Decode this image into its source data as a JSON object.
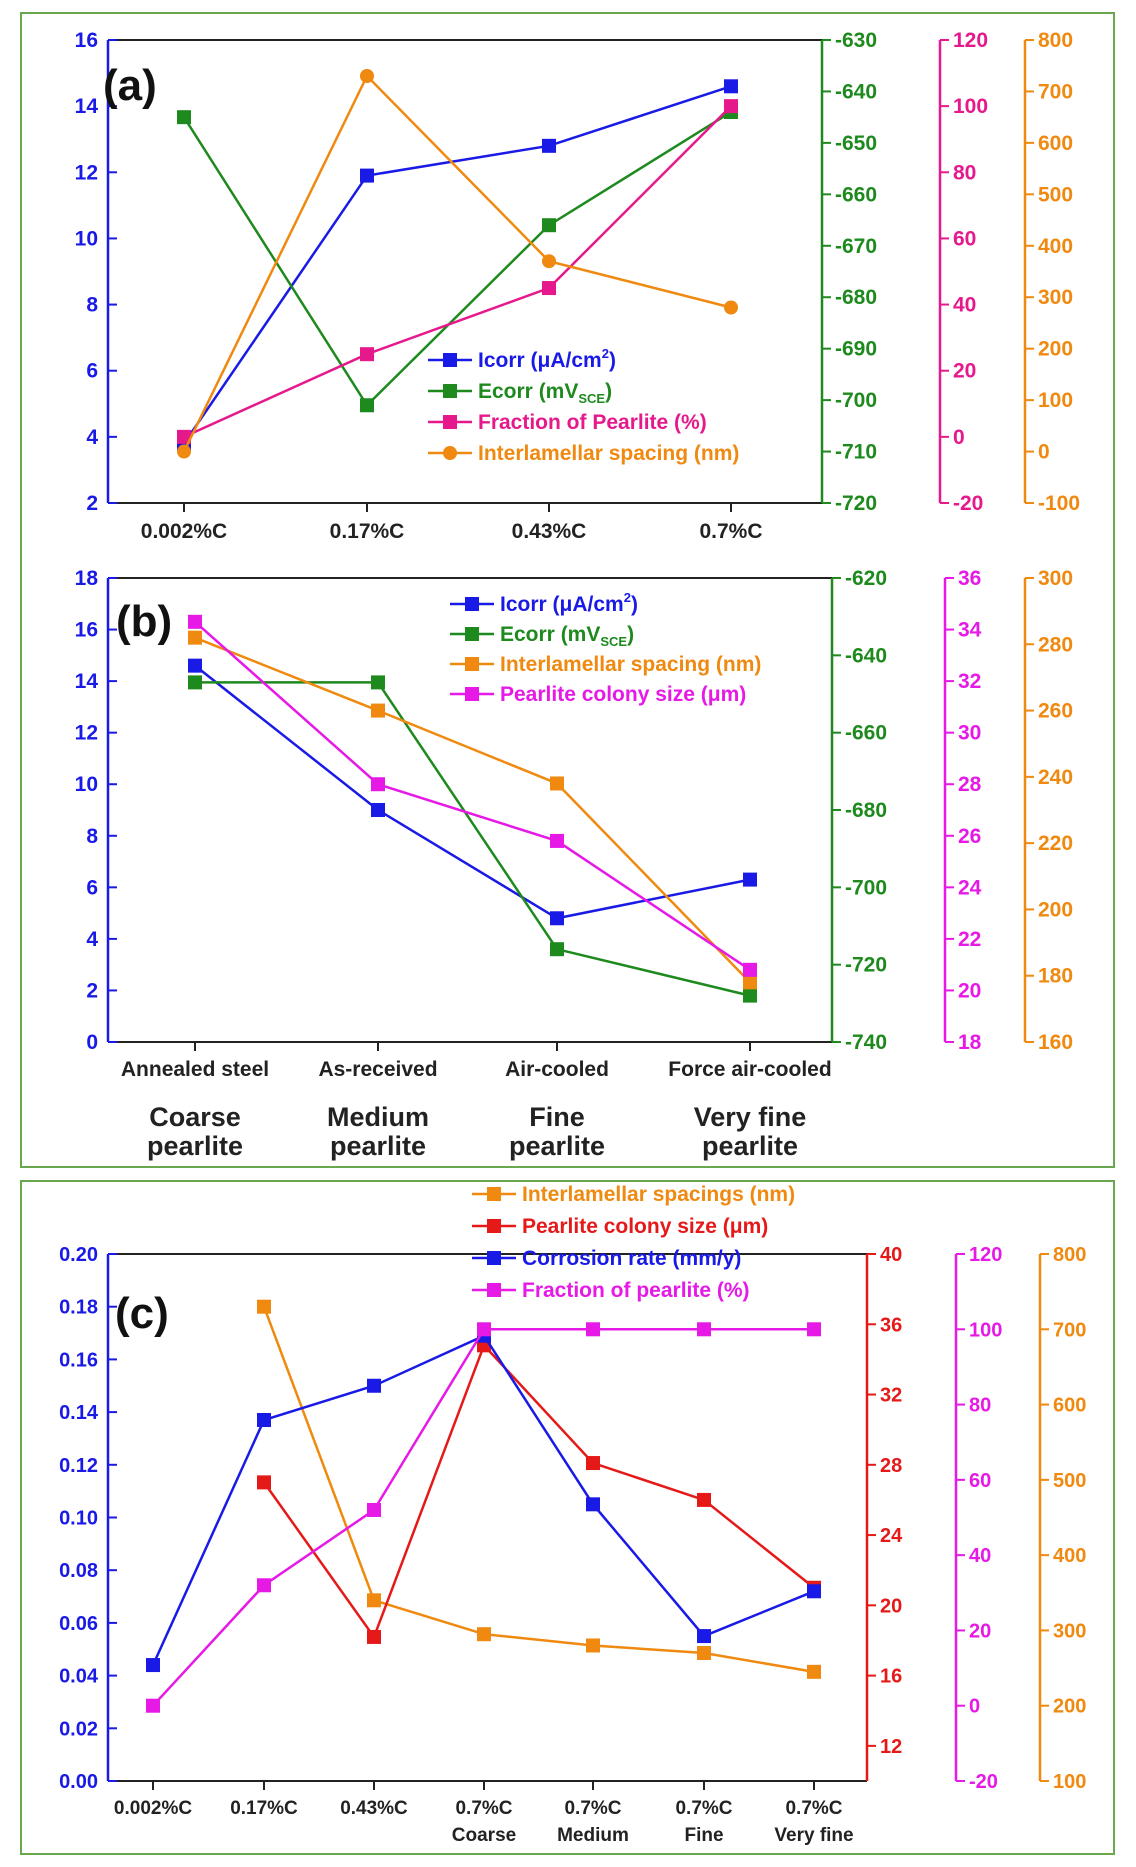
{
  "chart_data": [
    {
      "id": "a",
      "type": "line",
      "panel_label": "(a)",
      "categories": [
        "0.002%C",
        "0.17%C",
        "0.43%C",
        "0.7%C"
      ],
      "axes": [
        {
          "id": "y1",
          "side": "left",
          "color": "#1a1ae6",
          "ylim": [
            2,
            16
          ],
          "ticks": [
            2,
            4,
            6,
            8,
            10,
            12,
            14,
            16
          ]
        },
        {
          "id": "y2",
          "side": "right",
          "color": "#1e8a1e",
          "ylim": [
            -720,
            -630
          ],
          "ticks": [
            -720,
            -710,
            -700,
            -690,
            -680,
            -670,
            -660,
            -650,
            -640,
            -630
          ]
        },
        {
          "id": "y3",
          "side": "right",
          "color": "#e6198c",
          "ylim": [
            -20,
            120
          ],
          "ticks": [
            -20,
            0,
            20,
            40,
            60,
            80,
            100,
            120
          ]
        },
        {
          "id": "y4",
          "side": "right",
          "color": "#f0890f",
          "ylim": [
            -100,
            800
          ],
          "ticks": [
            -100,
            0,
            100,
            200,
            300,
            400,
            500,
            600,
            700,
            800
          ]
        }
      ],
      "series": [
        {
          "name": "Icorr (μA/cm²)",
          "legend": [
            "Icorr (μA/cm",
            "2",
            ")"
          ],
          "axis": "y1",
          "color": "#1a1ae6",
          "marker": "square",
          "values": [
            3.8,
            11.9,
            12.8,
            14.6
          ]
        },
        {
          "name": "Ecorr (mVSCE)",
          "legend": [
            "Ecorr (mV",
            "SCE",
            ")"
          ],
          "axis": "y2",
          "color": "#1e8a1e",
          "marker": "square",
          "values": [
            -645,
            -701,
            -666,
            -644
          ]
        },
        {
          "name": "Fraction of Pearlite (%)",
          "legend": [
            "Fraction of Pearlite (%)"
          ],
          "axis": "y3",
          "color": "#e6198c",
          "marker": "square",
          "values": [
            0,
            25,
            45,
            100
          ]
        },
        {
          "name": "Interlamellar spacing (nm)",
          "legend": [
            "Interlamellar spacing (nm)"
          ],
          "axis": "y4",
          "color": "#f0890f",
          "marker": "circle",
          "values": [
            0,
            730,
            370,
            280
          ]
        }
      ]
    },
    {
      "id": "b",
      "type": "line",
      "panel_label": "(b)",
      "categories": [
        "Annealed steel",
        "As-received",
        "Air-cooled",
        "Force air-cooled"
      ],
      "sub_labels": [
        [
          "Coarse",
          "pearlite"
        ],
        [
          "Medium",
          "pearlite"
        ],
        [
          "Fine",
          "pearlite"
        ],
        [
          "Very fine",
          "pearlite"
        ]
      ],
      "axes": [
        {
          "id": "y1",
          "side": "left",
          "color": "#1a1ae6",
          "ylim": [
            0,
            18
          ],
          "ticks": [
            0,
            2,
            4,
            6,
            8,
            10,
            12,
            14,
            16,
            18
          ]
        },
        {
          "id": "y2",
          "side": "right",
          "color": "#1e8a1e",
          "ylim": [
            -740,
            -620
          ],
          "ticks": [
            -740,
            -720,
            -700,
            -680,
            -660,
            -640,
            -620
          ]
        },
        {
          "id": "y3",
          "side": "right",
          "color": "#e619e6",
          "ylim": [
            18,
            36
          ],
          "ticks": [
            18,
            20,
            22,
            24,
            26,
            28,
            30,
            32,
            34,
            36
          ]
        },
        {
          "id": "y4",
          "side": "right",
          "color": "#f0890f",
          "ylim": [
            160,
            300
          ],
          "ticks": [
            160,
            180,
            200,
            220,
            240,
            260,
            280,
            300
          ]
        }
      ],
      "series": [
        {
          "name": "Icorr (μA/cm²)",
          "legend": [
            "Icorr (μA/cm",
            "2",
            ")"
          ],
          "axis": "y1",
          "color": "#1a1ae6",
          "marker": "square",
          "values": [
            14.6,
            9.0,
            4.8,
            6.3
          ]
        },
        {
          "name": "Ecorr (mVSCE)",
          "legend": [
            "Ecorr (mV",
            "SCE",
            ")"
          ],
          "axis": "y2",
          "color": "#1e8a1e",
          "marker": "square",
          "values": [
            -647,
            -647,
            -716,
            -728
          ]
        },
        {
          "name": "Interlamellar spacing (nm)",
          "legend": [
            "Interlamellar spacing (nm)"
          ],
          "axis": "y4",
          "color": "#f0890f",
          "marker": "square",
          "values": [
            282,
            260,
            238,
            178
          ]
        },
        {
          "name": "Pearlite colony size (μm)",
          "legend": [
            "Pearlite colony size (μm)"
          ],
          "axis": "y3",
          "color": "#e619e6",
          "marker": "square",
          "values": [
            34.3,
            28.0,
            25.8,
            20.8
          ]
        }
      ]
    },
    {
      "id": "c",
      "type": "line",
      "panel_label": "(c)",
      "categories": [
        "0.002%C",
        "0.17%C",
        "0.43%C",
        "0.7%C",
        "0.7%C",
        "0.7%C",
        "0.7%C"
      ],
      "sub_labels": [
        "",
        "",
        "",
        "Coarse",
        "Medium",
        "Fine",
        "Very fine"
      ],
      "axes": [
        {
          "id": "y1",
          "side": "left",
          "color": "#1a1ae6",
          "ylim": [
            0.0,
            0.2
          ],
          "ticks": [
            "0.00",
            "0.02",
            "0.04",
            "0.06",
            "0.08",
            "0.10",
            "0.12",
            "0.14",
            "0.16",
            "0.18",
            "0.20"
          ]
        },
        {
          "id": "y2",
          "side": "right",
          "color": "#e61919",
          "ylim": [
            10,
            40
          ],
          "ticks": [
            12,
            16,
            20,
            24,
            28,
            32,
            36,
            40
          ]
        },
        {
          "id": "y3",
          "side": "right",
          "color": "#e619e6",
          "ylim": [
            -20,
            120
          ],
          "ticks": [
            -20,
            0,
            20,
            40,
            60,
            80,
            100,
            120
          ]
        },
        {
          "id": "y4",
          "side": "right",
          "color": "#f0890f",
          "ylim": [
            100,
            800
          ],
          "ticks": [
            100,
            200,
            300,
            400,
            500,
            600,
            700,
            800
          ]
        }
      ],
      "series": [
        {
          "name": "Interlamellar spacings (nm)",
          "legend": [
            "Interlamellar spacings (nm)"
          ],
          "axis": "y4",
          "color": "#f0890f",
          "marker": "square",
          "values": [
            null,
            730,
            340,
            295,
            280,
            270,
            245
          ]
        },
        {
          "name": "Pearlite colony size (μm)",
          "legend": [
            "Pearlite colony size (μm)"
          ],
          "axis": "y2",
          "color": "#e61919",
          "marker": "square",
          "values": [
            null,
            27.0,
            18.2,
            34.8,
            28.1,
            26.0,
            21.0
          ]
        },
        {
          "name": "Corrosion rate (mm/y)",
          "legend": [
            "Corrosion rate (mm/y)"
          ],
          "axis": "y1",
          "color": "#1a1ae6",
          "marker": "square",
          "values": [
            0.044,
            0.137,
            0.15,
            0.169,
            0.105,
            0.055,
            0.072
          ]
        },
        {
          "name": "Fraction of pearlite (%)",
          "legend": [
            "Fraction of pearlite (%)"
          ],
          "axis": "y3",
          "color": "#e619e6",
          "marker": "square",
          "values": [
            0,
            32,
            52,
            100,
            100,
            100,
            100
          ]
        }
      ]
    }
  ]
}
